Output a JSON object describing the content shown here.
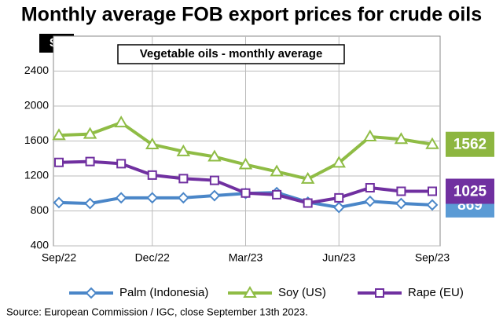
{
  "chart_data": {
    "type": "line",
    "title": "Monthly average FOB export prices for crude oils",
    "subtitle": "Vegetable oils - monthly average",
    "y_label": "$/t",
    "source": "Source: European Commission / IGC, close September 13th 2023.",
    "categories": [
      "Sep/22",
      null,
      null,
      "Dec/22",
      null,
      null,
      "Mar/23",
      null,
      null,
      "Jun/23",
      null,
      null,
      "Sep/23"
    ],
    "series": [
      {
        "name": "Palm (Indonesia)",
        "color": "#4a86c8",
        "marker": "diamond",
        "label_color": "#5b9bd5",
        "values": [
          895,
          885,
          950,
          950,
          950,
          975,
          1000,
          1010,
          900,
          840,
          910,
          885,
          869
        ]
      },
      {
        "name": "Soy (US)",
        "color": "#8fbc45",
        "marker": "triangle",
        "label_color": "#8db640",
        "values": [
          1665,
          1680,
          1810,
          1560,
          1480,
          1420,
          1330,
          1250,
          1165,
          1350,
          1650,
          1620,
          1562
        ]
      },
      {
        "name": "Rape (EU)",
        "color": "#7030a0",
        "marker": "square",
        "label_color": "#7030a0",
        "values": [
          1355,
          1365,
          1340,
          1210,
          1170,
          1150,
          1005,
          985,
          890,
          950,
          1065,
          1025,
          1025
        ]
      }
    ],
    "ylim": [
      400,
      2800
    ],
    "yticks": [
      400,
      800,
      1200,
      1600,
      2000,
      2400
    ],
    "grid": true
  }
}
